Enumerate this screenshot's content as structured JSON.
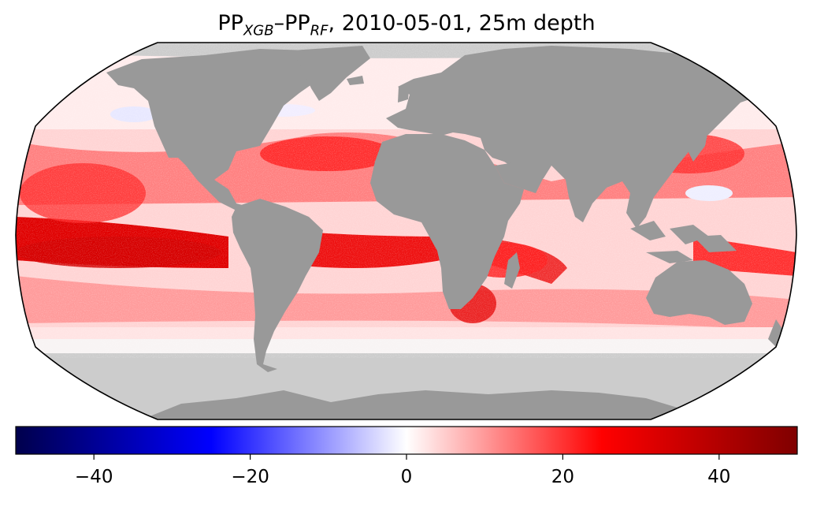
{
  "title": {
    "prefix": "PP",
    "sub1": "XGB",
    "dash": "–PP",
    "sub2": "RF",
    "suffix": ", 2010-05-01, 25m depth"
  },
  "colors": {
    "land": "#999999",
    "no_data": "#cccccc",
    "ocean_base": "#ffdada",
    "border": "#000000",
    "cmap": [
      "#00004c",
      "#0000ff",
      "#ffffff",
      "#ff0000",
      "#7f0000"
    ]
  },
  "colorbar": {
    "vmin": -50,
    "vmax": 50,
    "ticks": [
      {
        "value": -40,
        "label": "−40"
      },
      {
        "value": -20,
        "label": "−20"
      },
      {
        "value": 0,
        "label": "0"
      },
      {
        "value": 20,
        "label": "20"
      },
      {
        "value": 40,
        "label": "40"
      }
    ]
  }
}
